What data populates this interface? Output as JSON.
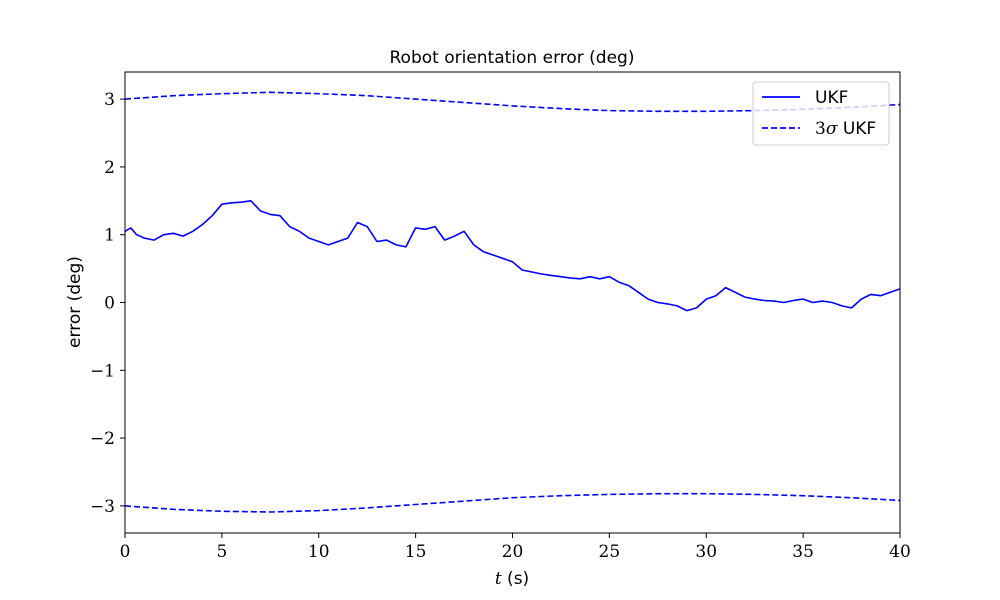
{
  "chart_data": {
    "type": "line",
    "title": "Robot orientation error (deg)",
    "xlabel_italic": "t",
    "xlabel_rest": " (s)",
    "ylabel": "error (deg)",
    "xlim": [
      0,
      40
    ],
    "ylim": [
      -3.4,
      3.4
    ],
    "xticks": [
      0,
      5,
      10,
      15,
      20,
      25,
      30,
      35,
      40
    ],
    "yticks": [
      -3,
      -2,
      -1,
      0,
      1,
      2,
      3
    ],
    "ytick_labels": [
      "−3",
      "−2",
      "−1",
      "0",
      "1",
      "2",
      "3"
    ],
    "grid": false,
    "legend_position": "top-right",
    "color": "#0000ff",
    "series": [
      {
        "name": "UKF",
        "style": "solid",
        "x": [
          0,
          0.3,
          0.6,
          1.0,
          1.5,
          2.0,
          2.5,
          3.0,
          3.5,
          4.0,
          4.5,
          5.0,
          5.5,
          6.0,
          6.5,
          7.0,
          7.5,
          8.0,
          8.5,
          9.0,
          9.5,
          10.0,
          10.5,
          11.0,
          11.5,
          12.0,
          12.5,
          13.0,
          13.5,
          14.0,
          14.5,
          15.0,
          15.5,
          16.0,
          16.5,
          17.0,
          17.5,
          18.0,
          18.5,
          19.0,
          19.5,
          20.0,
          20.5,
          21.0,
          21.5,
          22.0,
          22.5,
          23.0,
          23.5,
          24.0,
          24.5,
          25.0,
          25.5,
          26.0,
          26.5,
          27.0,
          27.5,
          28.0,
          28.5,
          29.0,
          29.5,
          30.0,
          30.5,
          31.0,
          31.5,
          32.0,
          32.5,
          33.0,
          33.5,
          34.0,
          34.5,
          35.0,
          35.5,
          36.0,
          36.5,
          37.0,
          37.5,
          38.0,
          38.5,
          39.0,
          39.5,
          40.0
        ],
        "y": [
          1.05,
          1.1,
          1.0,
          0.95,
          0.92,
          1.0,
          1.02,
          0.98,
          1.05,
          1.15,
          1.28,
          1.45,
          1.47,
          1.48,
          1.5,
          1.35,
          1.3,
          1.28,
          1.12,
          1.05,
          0.95,
          0.9,
          0.85,
          0.9,
          0.95,
          1.18,
          1.12,
          0.9,
          0.92,
          0.85,
          0.82,
          1.1,
          1.08,
          1.12,
          0.92,
          0.98,
          1.05,
          0.85,
          0.75,
          0.7,
          0.65,
          0.6,
          0.48,
          0.45,
          0.42,
          0.4,
          0.38,
          0.36,
          0.35,
          0.38,
          0.35,
          0.38,
          0.3,
          0.25,
          0.15,
          0.05,
          0.0,
          -0.02,
          -0.05,
          -0.12,
          -0.08,
          0.05,
          0.1,
          0.22,
          0.15,
          0.08,
          0.05,
          0.03,
          0.02,
          0.0,
          0.03,
          0.05,
          0.0,
          0.02,
          0.0,
          -0.05,
          -0.08,
          0.05,
          0.12,
          0.1,
          0.15,
          0.2
        ]
      },
      {
        "name": "3σ UKF",
        "legend_prefix": "3",
        "legend_sigma": "σ",
        "legend_suffix": " UKF",
        "style": "dashed",
        "x": [
          0,
          2.5,
          5,
          7.5,
          10,
          12.5,
          15,
          17.5,
          20,
          22.5,
          25,
          27.5,
          30,
          32.5,
          35,
          37.5,
          40
        ],
        "y": [
          3.0,
          3.05,
          3.08,
          3.1,
          3.08,
          3.05,
          3.0,
          2.95,
          2.9,
          2.86,
          2.83,
          2.82,
          2.82,
          2.83,
          2.85,
          2.88,
          2.92
        ],
        "y_lower": [
          -3.0,
          -3.05,
          -3.08,
          -3.09,
          -3.07,
          -3.03,
          -2.98,
          -2.93,
          -2.88,
          -2.85,
          -2.83,
          -2.82,
          -2.82,
          -2.83,
          -2.85,
          -2.88,
          -2.92
        ]
      }
    ]
  }
}
